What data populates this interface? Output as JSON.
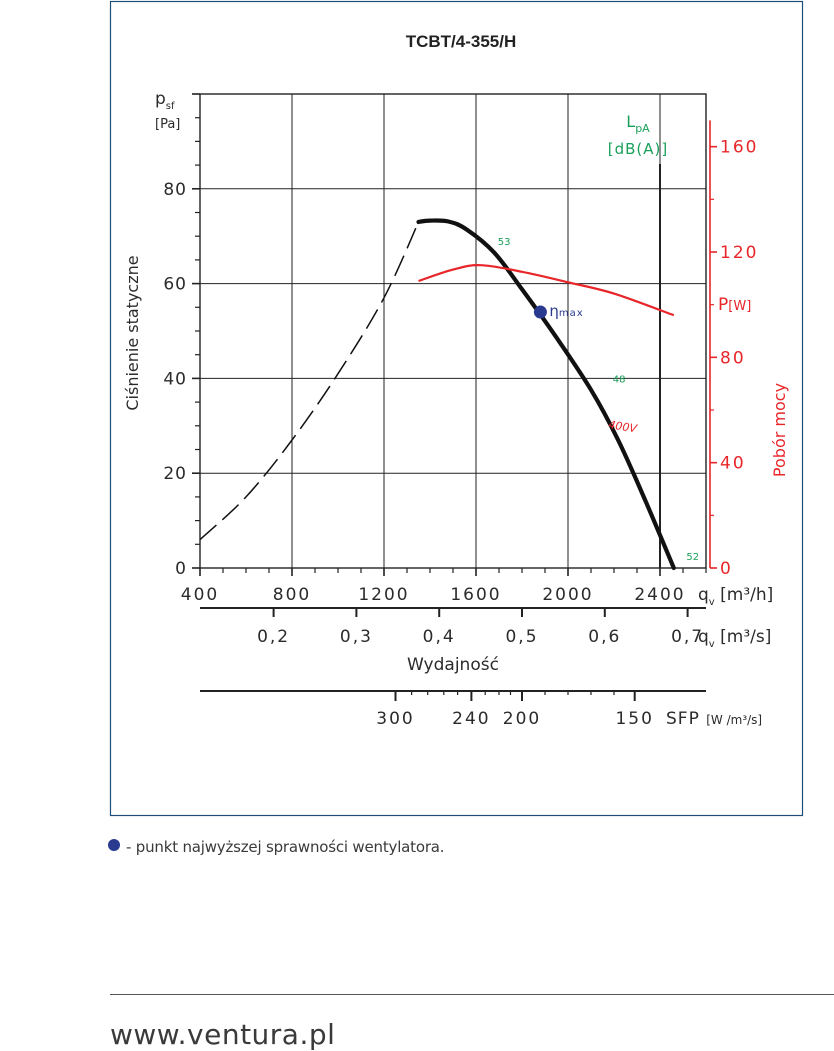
{
  "chart_data": {
    "type": "line",
    "title": "TCBT/4-355/H",
    "left_axis": {
      "symbol": "p",
      "subscript": "sf",
      "unit": "[Pa]",
      "label": "Ciśnienie statyczne",
      "ticks": [
        0,
        20,
        40,
        60,
        80
      ],
      "range": [
        0,
        100
      ]
    },
    "x_axis": {
      "label": "q",
      "subscript": "v",
      "unit": "[m³/h]",
      "ticks": [
        400,
        800,
        1200,
        1600,
        2000,
        2400
      ],
      "range": [
        400,
        2600
      ]
    },
    "x2_axis": {
      "label": "q",
      "subscript": "v",
      "unit": "[m³/s]",
      "ticks": [
        "0,2",
        "0,3",
        "0,4",
        "0,5",
        "0,6",
        "0,7"
      ],
      "tick_values": [
        0.2,
        0.3,
        0.4,
        0.5,
        0.6,
        0.7
      ],
      "title": "Wydajność"
    },
    "sfp_axis": {
      "label": "SFP",
      "unit": "[W /m³/s]",
      "ticks": [
        "300",
        "240",
        "200",
        "150"
      ],
      "tick_x_positions_m3h": [
        1250,
        1580,
        1800,
        2290
      ]
    },
    "right_axis": {
      "symbol": "P",
      "unit": "[W]",
      "label": "Pobór mocy",
      "ticks": [
        0,
        40,
        80,
        120,
        160
      ],
      "range": [
        0,
        180
      ],
      "color": "#e8262a"
    },
    "lpa_axis": {
      "symbol": "L",
      "subscript": "pA",
      "unit": "[dB(A)]",
      "color": "#1aa05a",
      "x_m3h": 2400
    },
    "series": [
      {
        "kind": "pressure-unstable",
        "style": "dashed",
        "x": [
          400,
          600,
          800,
          1000,
          1200,
          1350
        ],
        "y": [
          6,
          15,
          27,
          41,
          57,
          73
        ]
      },
      {
        "kind": "pressure",
        "style": "solid",
        "x": [
          1350,
          1400,
          1480,
          1560,
          1680,
          1800,
          1950,
          2100,
          2220,
          2340,
          2460
        ],
        "y": [
          73,
          73.3,
          73.1,
          71.4,
          66.5,
          58.8,
          48.6,
          37.6,
          26.8,
          13.8,
          0
        ]
      },
      {
        "kind": "power",
        "name": "400V",
        "style": "solid",
        "color": "#e8262a",
        "x": [
          1350,
          1500,
          1620,
          1800,
          2000,
          2200,
          2460
        ],
        "y": [
          109,
          113.3,
          115,
          112.5,
          108.5,
          104.2,
          96
        ]
      }
    ],
    "eta_max": {
      "x": 1880,
      "y": 54,
      "label": "η",
      "sub": "max",
      "color": "#2a3b8f"
    },
    "noise_labels": [
      {
        "text": "53",
        "x": 1660,
        "y": 69
      },
      {
        "text": "48",
        "x": 2160,
        "y": 40
      },
      {
        "text": "52",
        "x": 2480,
        "y": 2.5
      }
    ]
  },
  "footnote": "- punkt najwyższej sprawności wentylatora.",
  "footer": {
    "url": "www.ventura.pl"
  }
}
